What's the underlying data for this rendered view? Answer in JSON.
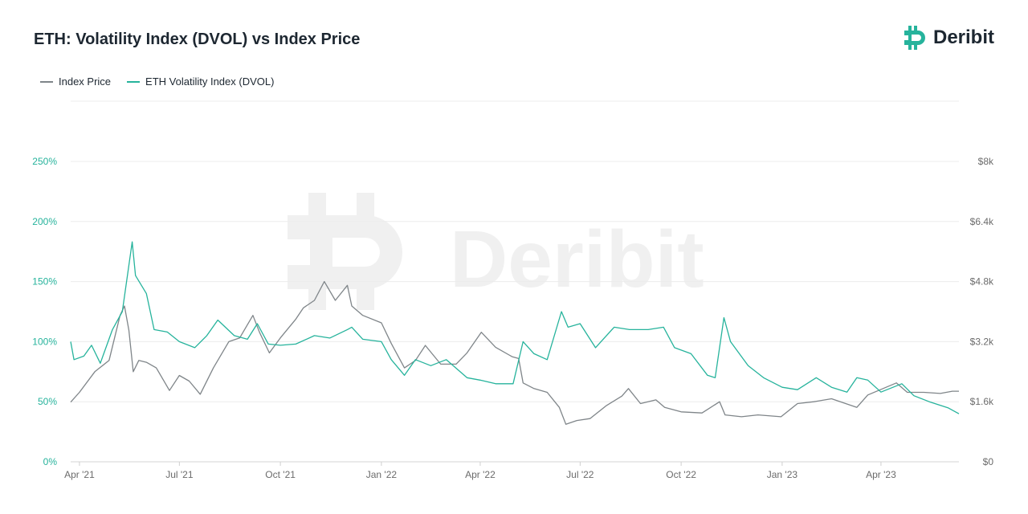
{
  "header": {
    "title": "ETH: Volatility Index (DVOL) vs Index Price",
    "brand": "Deribit"
  },
  "watermark": "Deribit",
  "colors": {
    "price": "#7f8589",
    "dvol": "#26b39c",
    "text": "#1d2731",
    "tick": "#6b6b6b",
    "grid": "#ececec"
  },
  "chart_data": {
    "type": "line",
    "title": "ETH: Volatility Index (DVOL) vs Index Price",
    "legend": {
      "position": "top-left",
      "entries": [
        "Index Price",
        "ETH Volatility Index (DVOL)"
      ]
    },
    "grid": true,
    "x_axis": {
      "range": [
        "2021-03-24",
        "2023-06-11"
      ],
      "ticks": [
        {
          "date": "2021-04-01",
          "label": "Apr '21"
        },
        {
          "date": "2021-07-01",
          "label": "Jul '21"
        },
        {
          "date": "2021-10-01",
          "label": "Oct '21"
        },
        {
          "date": "2022-01-01",
          "label": "Jan '22"
        },
        {
          "date": "2022-04-01",
          "label": "Apr '22"
        },
        {
          "date": "2022-07-01",
          "label": "Jul '22"
        },
        {
          "date": "2022-10-01",
          "label": "Oct '22"
        },
        {
          "date": "2023-01-01",
          "label": "Jan '23"
        },
        {
          "date": "2023-04-01",
          "label": "Apr '23"
        }
      ]
    },
    "y_left": {
      "range": [
        0,
        250
      ],
      "ticks": [
        0,
        50,
        100,
        150,
        200,
        250
      ],
      "labels": [
        "0%",
        "50%",
        "100%",
        "150%",
        "200%",
        "250%"
      ]
    },
    "y_right": {
      "range": [
        0,
        8000
      ],
      "ticks": [
        0,
        1600,
        3200,
        4800,
        6400,
        8000
      ],
      "labels": [
        "$0",
        "$1.6k",
        "$3.2k",
        "$4.8k",
        "$6.4k",
        "$8k"
      ]
    },
    "series": [
      {
        "name": "Index Price",
        "axis": "right",
        "unit": "USD",
        "points": [
          [
            "2021-03-24",
            1590
          ],
          [
            "2021-04-01",
            1850
          ],
          [
            "2021-04-15",
            2400
          ],
          [
            "2021-04-28",
            2700
          ],
          [
            "2021-05-08",
            3900
          ],
          [
            "2021-05-12",
            4150
          ],
          [
            "2021-05-16",
            3500
          ],
          [
            "2021-05-20",
            2400
          ],
          [
            "2021-05-25",
            2700
          ],
          [
            "2021-06-01",
            2650
          ],
          [
            "2021-06-10",
            2500
          ],
          [
            "2021-06-22",
            1900
          ],
          [
            "2021-07-01",
            2300
          ],
          [
            "2021-07-10",
            2150
          ],
          [
            "2021-07-20",
            1800
          ],
          [
            "2021-08-01",
            2500
          ],
          [
            "2021-08-15",
            3200
          ],
          [
            "2021-08-25",
            3300
          ],
          [
            "2021-09-06",
            3900
          ],
          [
            "2021-09-12",
            3450
          ],
          [
            "2021-09-21",
            2900
          ],
          [
            "2021-10-01",
            3300
          ],
          [
            "2021-10-15",
            3800
          ],
          [
            "2021-10-22",
            4100
          ],
          [
            "2021-11-01",
            4300
          ],
          [
            "2021-11-10",
            4800
          ],
          [
            "2021-11-20",
            4300
          ],
          [
            "2021-12-01",
            4700
          ],
          [
            "2021-12-05",
            4150
          ],
          [
            "2021-12-15",
            3900
          ],
          [
            "2022-01-01",
            3700
          ],
          [
            "2022-01-10",
            3150
          ],
          [
            "2022-01-22",
            2500
          ],
          [
            "2022-02-01",
            2700
          ],
          [
            "2022-02-10",
            3100
          ],
          [
            "2022-02-24",
            2600
          ],
          [
            "2022-03-10",
            2600
          ],
          [
            "2022-03-20",
            2900
          ],
          [
            "2022-04-02",
            3450
          ],
          [
            "2022-04-15",
            3050
          ],
          [
            "2022-04-30",
            2800
          ],
          [
            "2022-05-06",
            2750
          ],
          [
            "2022-05-10",
            2100
          ],
          [
            "2022-05-20",
            1950
          ],
          [
            "2022-06-01",
            1850
          ],
          [
            "2022-06-12",
            1450
          ],
          [
            "2022-06-18",
            1000
          ],
          [
            "2022-06-28",
            1100
          ],
          [
            "2022-07-10",
            1150
          ],
          [
            "2022-07-25",
            1500
          ],
          [
            "2022-08-08",
            1750
          ],
          [
            "2022-08-14",
            1950
          ],
          [
            "2022-08-25",
            1550
          ],
          [
            "2022-09-08",
            1650
          ],
          [
            "2022-09-16",
            1450
          ],
          [
            "2022-10-01",
            1330
          ],
          [
            "2022-10-20",
            1300
          ],
          [
            "2022-11-05",
            1600
          ],
          [
            "2022-11-10",
            1250
          ],
          [
            "2022-11-25",
            1200
          ],
          [
            "2022-12-10",
            1250
          ],
          [
            "2022-12-31",
            1200
          ],
          [
            "2023-01-15",
            1550
          ],
          [
            "2023-01-30",
            1600
          ],
          [
            "2023-02-15",
            1680
          ],
          [
            "2023-03-10",
            1450
          ],
          [
            "2023-03-20",
            1780
          ],
          [
            "2023-04-15",
            2100
          ],
          [
            "2023-04-25",
            1850
          ],
          [
            "2023-05-10",
            1850
          ],
          [
            "2023-05-25",
            1820
          ],
          [
            "2023-06-05",
            1880
          ],
          [
            "2023-06-11",
            1880
          ]
        ]
      },
      {
        "name": "ETH Volatility Index (DVOL)",
        "axis": "left",
        "unit": "%",
        "points": [
          [
            "2021-03-24",
            100
          ],
          [
            "2021-03-27",
            85
          ],
          [
            "2021-04-05",
            88
          ],
          [
            "2021-04-12",
            97
          ],
          [
            "2021-04-20",
            82
          ],
          [
            "2021-05-01",
            110
          ],
          [
            "2021-05-10",
            125
          ],
          [
            "2021-05-19",
            183
          ],
          [
            "2021-05-22",
            155
          ],
          [
            "2021-06-01",
            140
          ],
          [
            "2021-06-08",
            110
          ],
          [
            "2021-06-20",
            108
          ],
          [
            "2021-07-01",
            100
          ],
          [
            "2021-07-15",
            95
          ],
          [
            "2021-07-26",
            105
          ],
          [
            "2021-08-05",
            118
          ],
          [
            "2021-08-20",
            105
          ],
          [
            "2021-09-01",
            102
          ],
          [
            "2021-09-10",
            115
          ],
          [
            "2021-09-20",
            98
          ],
          [
            "2021-10-01",
            97
          ],
          [
            "2021-10-15",
            98
          ],
          [
            "2021-11-01",
            105
          ],
          [
            "2021-11-15",
            103
          ],
          [
            "2021-12-01",
            110
          ],
          [
            "2021-12-05",
            112
          ],
          [
            "2021-12-15",
            102
          ],
          [
            "2022-01-01",
            100
          ],
          [
            "2022-01-10",
            85
          ],
          [
            "2022-01-22",
            72
          ],
          [
            "2022-02-01",
            85
          ],
          [
            "2022-02-15",
            80
          ],
          [
            "2022-03-01",
            85
          ],
          [
            "2022-03-20",
            70
          ],
          [
            "2022-04-01",
            68
          ],
          [
            "2022-04-15",
            65
          ],
          [
            "2022-05-01",
            65
          ],
          [
            "2022-05-10",
            100
          ],
          [
            "2022-05-20",
            90
          ],
          [
            "2022-06-01",
            85
          ],
          [
            "2022-06-14",
            125
          ],
          [
            "2022-06-20",
            112
          ],
          [
            "2022-07-01",
            115
          ],
          [
            "2022-07-15",
            95
          ],
          [
            "2022-08-01",
            112
          ],
          [
            "2022-08-15",
            110
          ],
          [
            "2022-09-01",
            110
          ],
          [
            "2022-09-15",
            112
          ],
          [
            "2022-09-25",
            95
          ],
          [
            "2022-10-10",
            90
          ],
          [
            "2022-10-25",
            72
          ],
          [
            "2022-11-01",
            70
          ],
          [
            "2022-11-09",
            120
          ],
          [
            "2022-11-15",
            100
          ],
          [
            "2022-12-01",
            80
          ],
          [
            "2022-12-15",
            70
          ],
          [
            "2023-01-01",
            62
          ],
          [
            "2023-01-15",
            60
          ],
          [
            "2023-02-01",
            70
          ],
          [
            "2023-02-15",
            62
          ],
          [
            "2023-03-01",
            58
          ],
          [
            "2023-03-10",
            70
          ],
          [
            "2023-03-20",
            68
          ],
          [
            "2023-04-01",
            58
          ],
          [
            "2023-04-20",
            65
          ],
          [
            "2023-05-01",
            55
          ],
          [
            "2023-05-15",
            50
          ],
          [
            "2023-06-01",
            45
          ],
          [
            "2023-06-11",
            40
          ]
        ]
      }
    ]
  }
}
